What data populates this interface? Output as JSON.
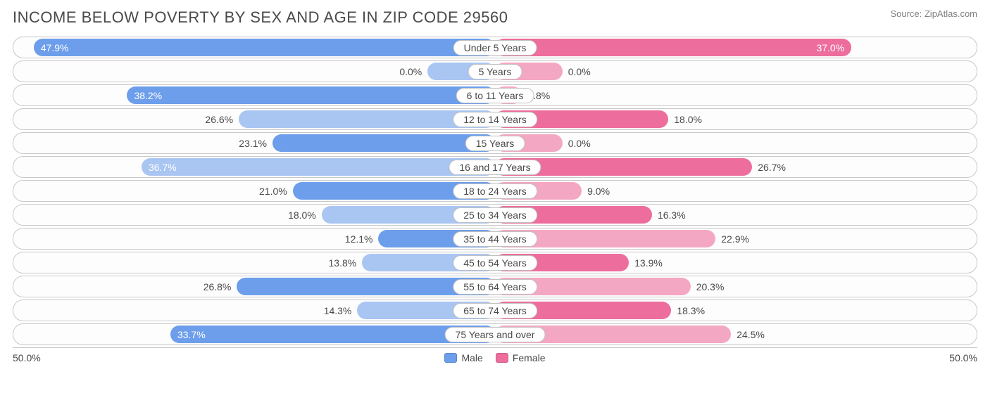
{
  "title": "INCOME BELOW POVERTY BY SEX AND AGE IN ZIP CODE 29560",
  "source": "Source: ZipAtlas.com",
  "chart": {
    "type": "diverging-bar",
    "max_pct": 50.0,
    "axis_left_label": "50.0%",
    "axis_right_label": "50.0%",
    "male_color": "#6d9eeb",
    "male_light": "#a9c5f2",
    "female_color": "#ed6d9c",
    "female_light": "#f4a7c3",
    "border_color": "#c8c8c8",
    "background_color": "#ffffff",
    "text_color": "#4a4a4a",
    "legend": {
      "male": "Male",
      "female": "Female"
    },
    "rows": [
      {
        "category": "Under 5 Years",
        "male": 47.9,
        "female": 37.0,
        "male_light": false,
        "female_light": false
      },
      {
        "category": "5 Years",
        "male": 0.0,
        "female": 0.0,
        "male_light": true,
        "female_light": true,
        "placeholder": true
      },
      {
        "category": "6 to 11 Years",
        "male": 38.2,
        "female": 2.8,
        "male_light": false,
        "female_light": true
      },
      {
        "category": "12 to 14 Years",
        "male": 26.6,
        "female": 18.0,
        "male_light": true,
        "female_light": false
      },
      {
        "category": "15 Years",
        "male": 23.1,
        "female": 0.0,
        "male_light": false,
        "female_light": true,
        "female_placeholder": true
      },
      {
        "category": "16 and 17 Years",
        "male": 36.7,
        "female": 26.7,
        "male_light": true,
        "female_light": false
      },
      {
        "category": "18 to 24 Years",
        "male": 21.0,
        "female": 9.0,
        "male_light": false,
        "female_light": true
      },
      {
        "category": "25 to 34 Years",
        "male": 18.0,
        "female": 16.3,
        "male_light": true,
        "female_light": false
      },
      {
        "category": "35 to 44 Years",
        "male": 12.1,
        "female": 22.9,
        "male_light": false,
        "female_light": true
      },
      {
        "category": "45 to 54 Years",
        "male": 13.8,
        "female": 13.9,
        "male_light": true,
        "female_light": false
      },
      {
        "category": "55 to 64 Years",
        "male": 26.8,
        "female": 20.3,
        "male_light": false,
        "female_light": true
      },
      {
        "category": "65 to 74 Years",
        "male": 14.3,
        "female": 18.3,
        "male_light": true,
        "female_light": false
      },
      {
        "category": "75 Years and over",
        "male": 33.7,
        "female": 24.5,
        "male_light": false,
        "female_light": true
      }
    ]
  }
}
